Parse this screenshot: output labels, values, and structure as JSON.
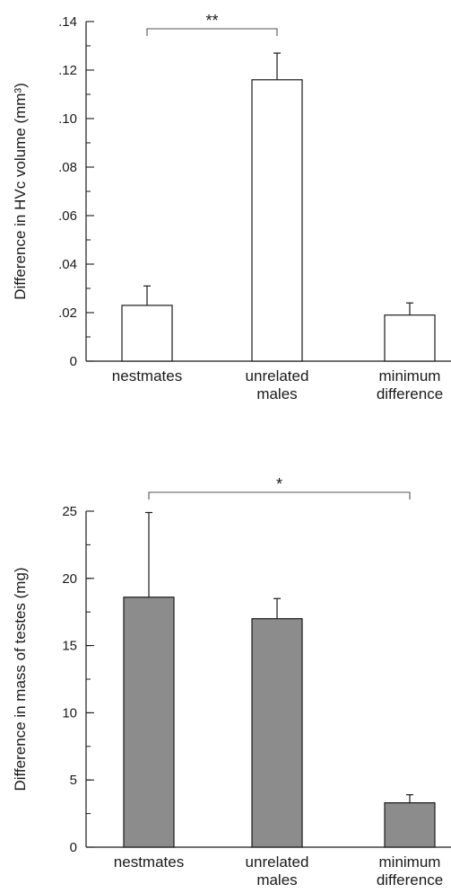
{
  "chart_data": [
    {
      "type": "bar",
      "title": "",
      "xlabel": "",
      "ylabel": "Difference in HVc volume (mm³)",
      "ylim": [
        0,
        0.14
      ],
      "grid": false,
      "categories": [
        {
          "lines": [
            "nestmates"
          ]
        },
        {
          "lines": [
            "unrelated",
            "males"
          ]
        },
        {
          "lines": [
            "minimum",
            "difference"
          ]
        }
      ],
      "values": [
        0.023,
        0.116,
        0.019
      ],
      "errors": [
        0.008,
        0.011,
        0.005
      ],
      "bar_color": "#ffffff",
      "ticks": [
        {
          "value": 0.14,
          "label": ".14"
        },
        {
          "value": 0.12,
          "label": ".12"
        },
        {
          "value": 0.1,
          "label": ".10"
        },
        {
          "value": 0.08,
          "label": ".08"
        },
        {
          "value": 0.06,
          "label": ".06"
        },
        {
          "value": 0.04,
          "label": ".04"
        },
        {
          "value": 0.02,
          "label": ".02"
        },
        {
          "value": 0,
          "label": "0"
        }
      ],
      "significance": {
        "from": 0,
        "to": 1,
        "label": "**"
      }
    },
    {
      "type": "bar",
      "title": "",
      "xlabel": "",
      "ylabel": "Difference in mass of testes (mg)",
      "ylim": [
        0,
        25
      ],
      "grid": false,
      "categories": [
        {
          "lines": [
            "nestmates"
          ]
        },
        {
          "lines": [
            "unrelated",
            "males"
          ]
        },
        {
          "lines": [
            "minimum",
            "difference"
          ]
        }
      ],
      "values": [
        18.6,
        17.0,
        3.3
      ],
      "errors": [
        6.3,
        1.5,
        0.6
      ],
      "bar_color": "#8c8c8c",
      "ticks": [
        {
          "value": 25,
          "label": "25"
        },
        {
          "value": 20,
          "label": "20"
        },
        {
          "value": 15,
          "label": "15"
        },
        {
          "value": 10,
          "label": "10"
        },
        {
          "value": 5,
          "label": "5"
        },
        {
          "value": 0,
          "label": "0"
        }
      ],
      "significance": {
        "from": 0,
        "to": 2,
        "label": "*"
      }
    }
  ]
}
